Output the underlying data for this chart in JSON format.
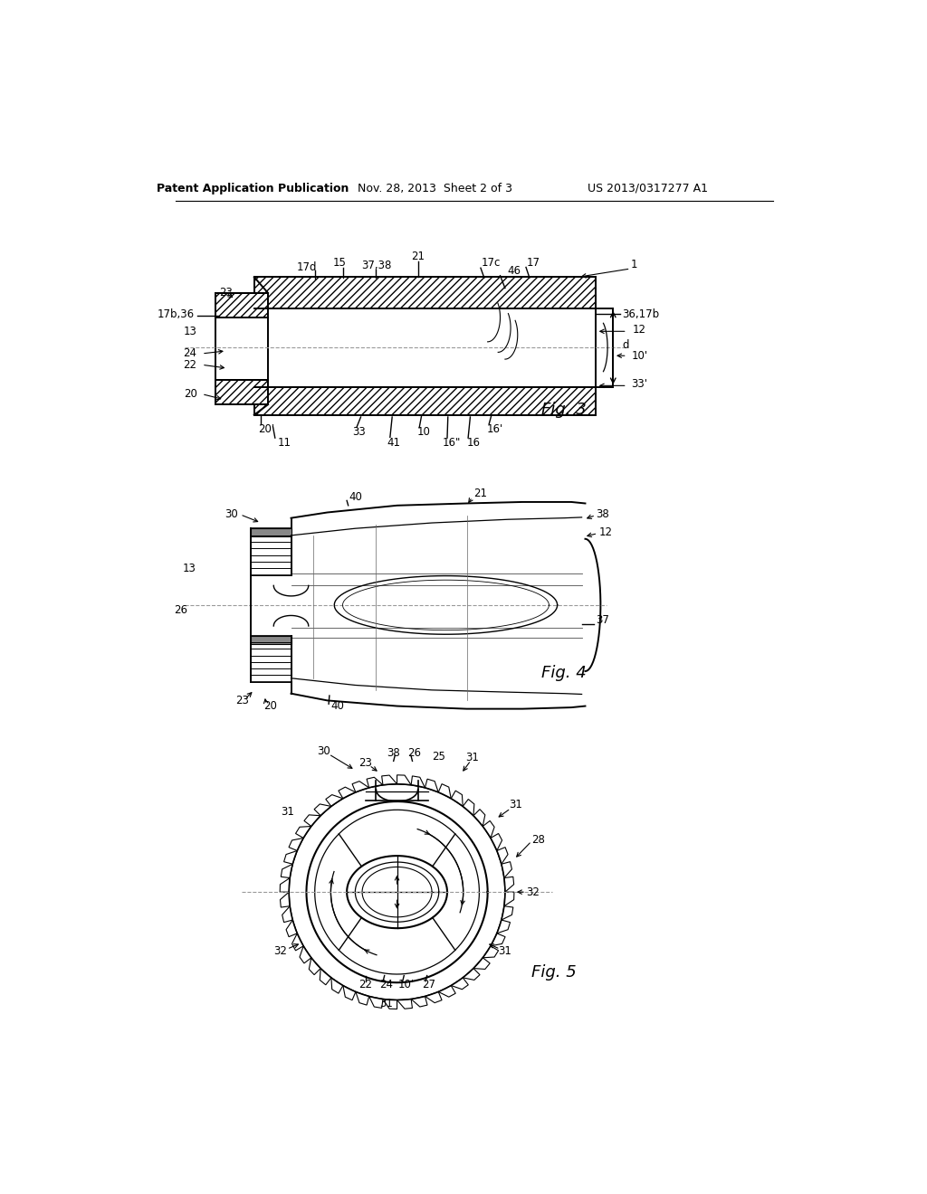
{
  "bg_color": "#ffffff",
  "header_left": "Patent Application Publication",
  "header_mid": "Nov. 28, 2013  Sheet 2 of 3",
  "header_right": "US 2013/0317277 A1",
  "text_color": "#000000"
}
